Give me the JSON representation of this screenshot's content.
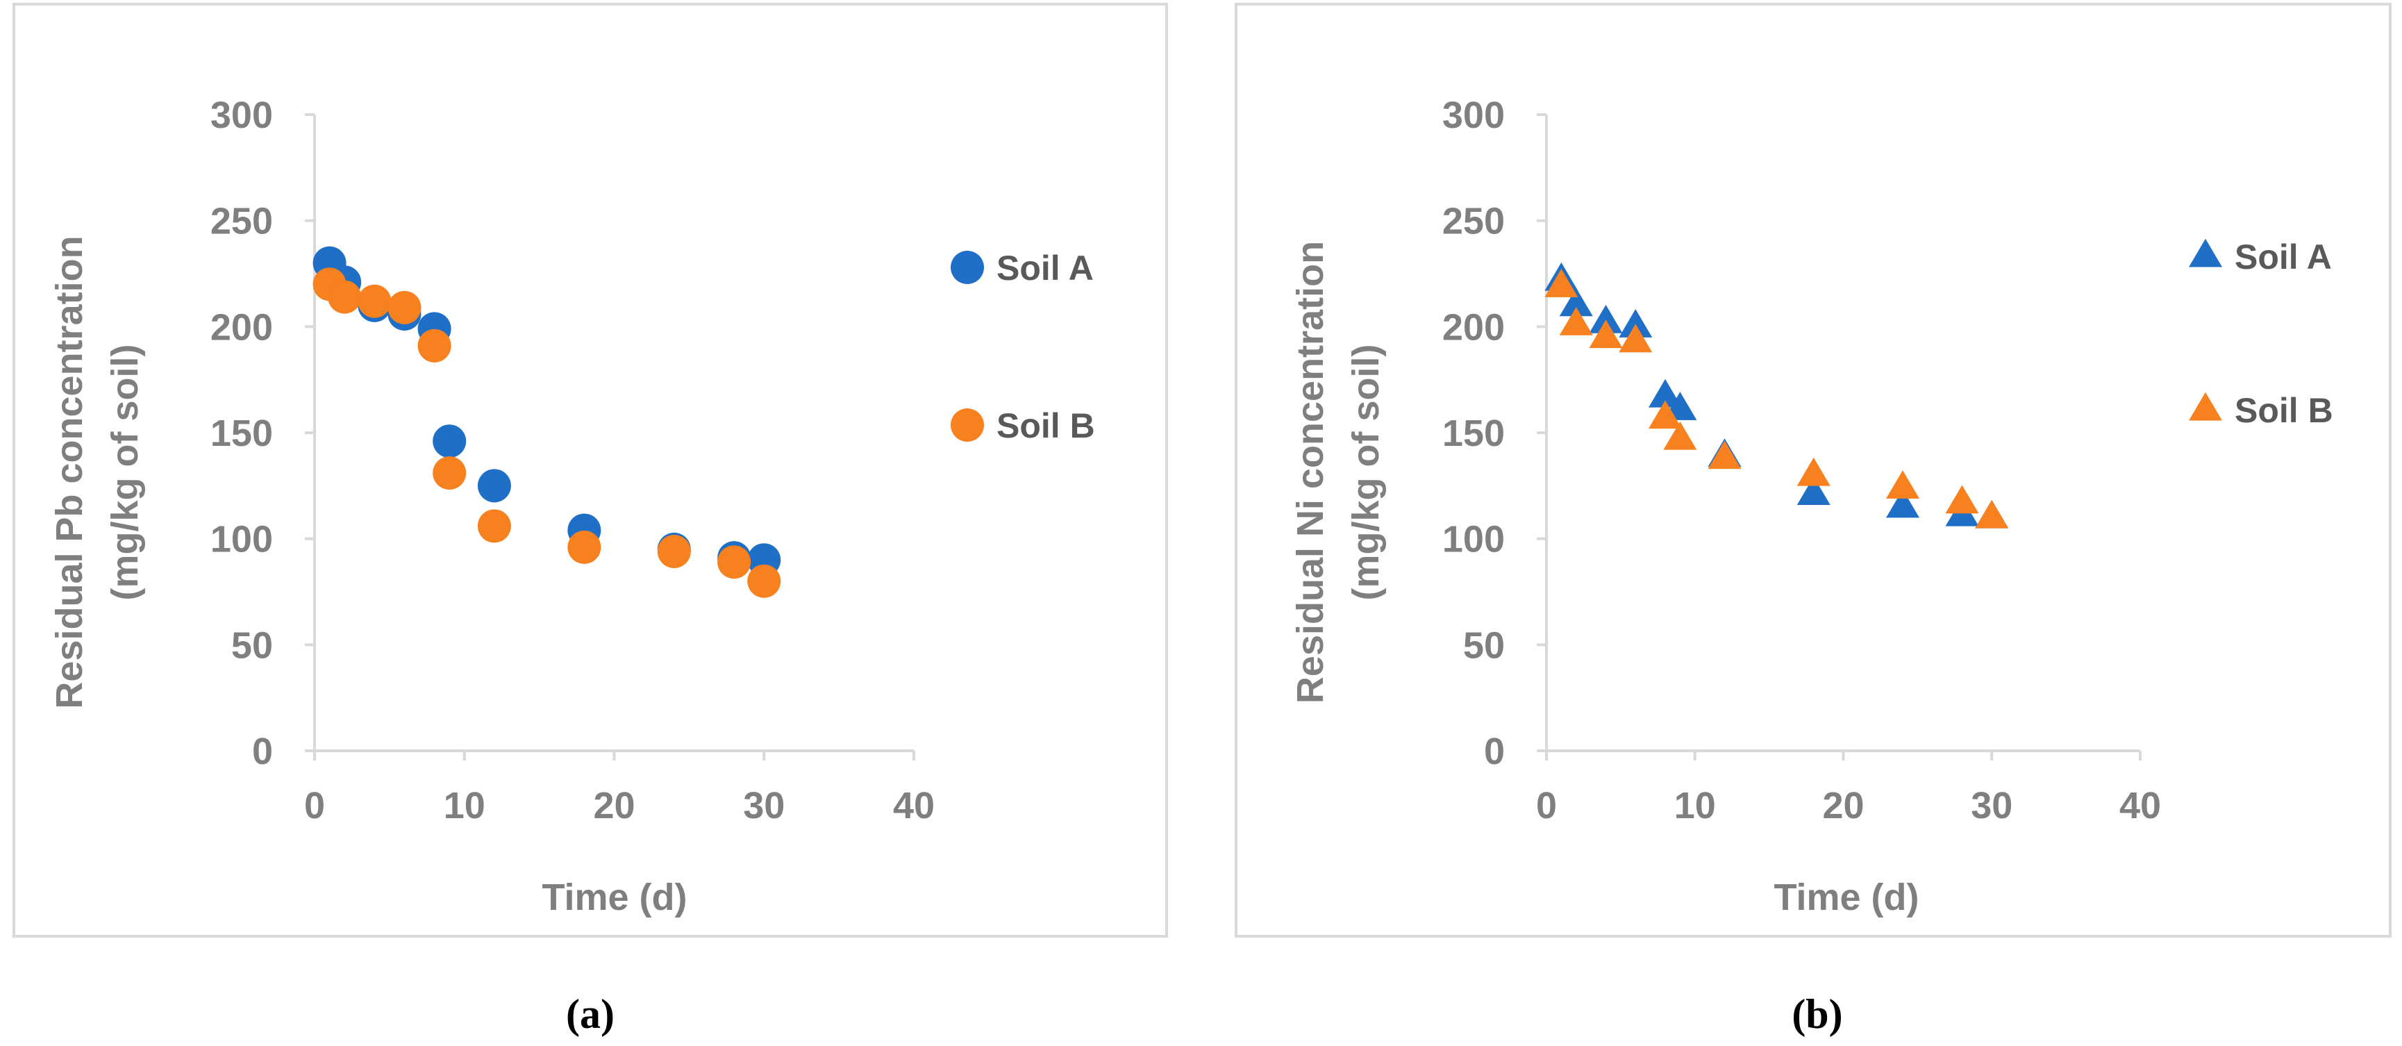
{
  "chart_data": [
    {
      "type": "scatter",
      "caption": "(a)",
      "marker": "circle",
      "xlabel": "Time (d)",
      "ylabel_line1": "Residual Pb concentration",
      "ylabel_line2": "(mg/kg of soil)",
      "xlim": [
        0,
        40
      ],
      "ylim": [
        0,
        300
      ],
      "x_ticks": [
        0,
        10,
        20,
        30,
        40
      ],
      "y_ticks": [
        0,
        50,
        100,
        150,
        200,
        250,
        300
      ],
      "grid": false,
      "legend_position": "right",
      "series": [
        {
          "name": "Soil A",
          "color": "#1f6fc6",
          "x": [
            1,
            2,
            4,
            6,
            8,
            9,
            12,
            18,
            24,
            28,
            30
          ],
          "y": [
            230,
            221,
            210,
            206,
            199,
            146,
            125,
            104,
            95,
            91,
            90
          ]
        },
        {
          "name": "Soil B",
          "color": "#f7801f",
          "x": [
            1,
            2,
            4,
            6,
            8,
            9,
            12,
            18,
            24,
            28,
            30
          ],
          "y": [
            220,
            214,
            212,
            209,
            191,
            131,
            106,
            96,
            94,
            89,
            80
          ]
        }
      ]
    },
    {
      "type": "scatter",
      "caption": "(b)",
      "marker": "triangle",
      "xlabel": "Time (d)",
      "ylabel_line1": "Residual Ni concentration",
      "ylabel_line2": "(mg/kg of soil)",
      "xlim": [
        0,
        40
      ],
      "ylim": [
        0,
        300
      ],
      "x_ticks": [
        0,
        10,
        20,
        30,
        40
      ],
      "y_ticks": [
        0,
        50,
        100,
        150,
        200,
        250,
        300
      ],
      "grid": false,
      "legend_position": "right",
      "series": [
        {
          "name": "Soil A",
          "color": "#1f6fc6",
          "x": [
            1,
            2,
            4,
            6,
            8,
            9,
            12,
            18,
            24,
            28,
            30
          ],
          "y": [
            222,
            210,
            202,
            200,
            167,
            161,
            139,
            121,
            115,
            111,
            110
          ]
        },
        {
          "name": "Soil B",
          "color": "#f7801f",
          "x": [
            1,
            2,
            4,
            6,
            8,
            9,
            12,
            18,
            24,
            28,
            30
          ],
          "y": [
            219,
            201,
            195,
            193,
            157,
            147,
            138,
            130,
            124,
            117,
            110
          ]
        }
      ]
    }
  ]
}
